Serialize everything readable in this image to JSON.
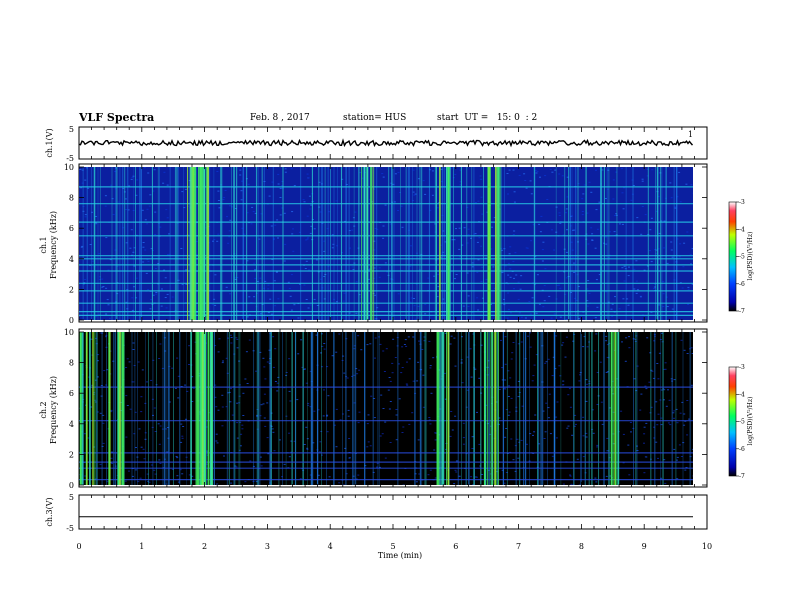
{
  "header": {
    "title": "VLF Spectra",
    "date": "Feb. 8 , 2017",
    "station": "station= HUS",
    "start_ut": "start  UT =   15: 0  : 2"
  },
  "chart_data": [
    {
      "type": "line",
      "panel": "ch1-waveform",
      "ylabel": "ch.1(V)",
      "yticks": [
        "5",
        "-5"
      ],
      "ylim": [
        -5,
        5
      ],
      "xlim": [
        0,
        10
      ],
      "series": [
        {
          "values_description_level": 0.0
        }
      ],
      "end_marker": "1"
    },
    {
      "type": "heatmap",
      "panel": "ch1-spectrogram",
      "ylabel_top": "ch.1",
      "ylabel": "Frequency (kHz)",
      "yticks": [
        "0",
        "2",
        "4",
        "6",
        "8",
        "10"
      ],
      "ylim": [
        0,
        10
      ],
      "xlim": [
        0,
        10
      ],
      "background_color": "#0b1fa0",
      "bright_bursts_min": [
        1.85,
        1.95,
        5.8,
        4.6,
        6.6
      ],
      "horizontal_lines_khz": [
        0.3,
        0.55,
        1.1,
        1.9,
        2.4,
        3.2,
        3.6,
        4.0,
        4.2,
        5.5,
        6.4,
        7.6,
        8.7
      ],
      "colorbar": {
        "label": "log(PSD)(V²/Hz)",
        "ticks": [
          "-3",
          "-4",
          "-5",
          "-6",
          "-7"
        ],
        "range": [
          -7,
          -3
        ]
      }
    },
    {
      "type": "heatmap",
      "panel": "ch2-spectrogram",
      "ylabel_top": "ch.2",
      "ylabel": "Frequency (kHz)",
      "yticks": [
        "0",
        "2",
        "4",
        "6",
        "8",
        "10"
      ],
      "ylim": [
        0,
        10
      ],
      "xlim": [
        0,
        10
      ],
      "background_color": "#000000",
      "bright_bursts_min": [
        0.15,
        0.6,
        1.9,
        2.0,
        2.1,
        5.8,
        6.55,
        8.5
      ],
      "horizontal_lines_khz": [
        0.35,
        1.1,
        1.5,
        2.1,
        4.2,
        6.4
      ],
      "colorbar": {
        "label": "log(PSD)(V²/Hz)",
        "ticks": [
          "-3",
          "-4",
          "-5",
          "-6",
          "-7"
        ],
        "range": [
          -7,
          -3
        ]
      }
    },
    {
      "type": "line",
      "panel": "ch3-waveform",
      "ylabel": "ch.3(V)",
      "yticks": [
        "5",
        "-5"
      ],
      "ylim": [
        -5,
        5
      ],
      "xlim": [
        0,
        10
      ],
      "series": [
        {
          "constant_value": -1.5
        }
      ]
    }
  ],
  "xaxis": {
    "label": "Time  (min)",
    "ticks": [
      "0",
      "1",
      "2",
      "3",
      "4",
      "5",
      "6",
      "7",
      "8",
      "9",
      "10"
    ]
  }
}
